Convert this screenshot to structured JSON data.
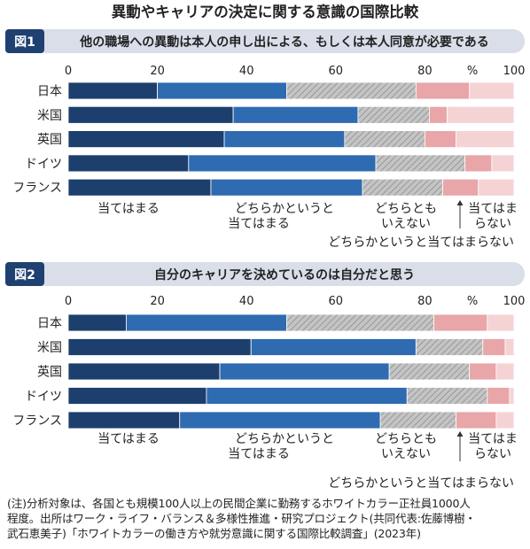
{
  "main_title": "異動やキャリアの決定に関する意識の国際比較",
  "colors": {
    "title_bar_bg": "#d9dee9",
    "figure_tag_bg": "#1f4171",
    "agree": "#1c3f6e",
    "somewhat_agree": "#2e6bb1",
    "neutral": "#b7b7b7",
    "somewhat_disagree": "#e8a6a8",
    "disagree": "#f5d3d5"
  },
  "chart_data": [
    {
      "type": "bar",
      "orientation": "horizontal-stacked",
      "figure_tag": "図1",
      "title": "他の職場への異動は本人の申し出による、もしくは本人同意が必要である",
      "unit_label": "%",
      "xlim": [
        0,
        100
      ],
      "x_ticks": [
        "0",
        "20",
        "40",
        "60",
        "80",
        "100"
      ],
      "categories": [
        "日本",
        "米国",
        "英国",
        "ドイツ",
        "フランス"
      ],
      "series": [
        {
          "name": "当てはまる",
          "values": [
            20,
            37,
            35,
            27,
            32
          ]
        },
        {
          "name": "どちらかというと当てはまる",
          "values": [
            29,
            28,
            27,
            42,
            34
          ]
        },
        {
          "name": "どちらともいえない",
          "values": [
            29,
            16,
            18,
            20,
            18
          ]
        },
        {
          "name": "どちらかというと当てはまらない",
          "values": [
            12,
            4,
            7,
            6,
            8
          ]
        },
        {
          "name": "当てはまらない",
          "values": [
            10,
            15,
            13,
            5,
            8
          ]
        }
      ],
      "legend": {
        "agree": "当てはまる",
        "somewhat_agree_line1": "どちらかというと",
        "somewhat_agree_line2": "当てはまる",
        "neutral_line1": "どちらとも",
        "neutral_line2": "いえない",
        "disagree_line1": "当てはま",
        "disagree_line2": "らない",
        "somewhat_disagree": "どちらかというと当てはまらない"
      }
    },
    {
      "type": "bar",
      "orientation": "horizontal-stacked",
      "figure_tag": "図2",
      "title": "自分のキャリアを決めているのは自分だと思う",
      "unit_label": "%",
      "xlim": [
        0,
        100
      ],
      "x_ticks": [
        "0",
        "20",
        "40",
        "60",
        "80",
        "100"
      ],
      "categories": [
        "日本",
        "米国",
        "英国",
        "ドイツ",
        "フランス"
      ],
      "series": [
        {
          "name": "当てはまる",
          "values": [
            13,
            41,
            34,
            31,
            25
          ]
        },
        {
          "name": "どちらかというと当てはまる",
          "values": [
            36,
            37,
            38,
            45,
            45
          ]
        },
        {
          "name": "どちらともいえない",
          "values": [
            33,
            15,
            18,
            18,
            17
          ]
        },
        {
          "name": "どちらかというと当てはまらない",
          "values": [
            12,
            5,
            6,
            5,
            9
          ]
        },
        {
          "name": "当てはまらない",
          "values": [
            6,
            2,
            4,
            1,
            4
          ]
        }
      ],
      "legend": {
        "agree": "当てはまる",
        "somewhat_agree_line1": "どちらかというと",
        "somewhat_agree_line2": "当てはまる",
        "neutral_line1": "どちらとも",
        "neutral_line2": "いえない",
        "disagree_line1": "当てはま",
        "disagree_line2": "らない",
        "somewhat_disagree": "どちらかというと当てはまらない"
      }
    }
  ],
  "note": {
    "line1": "(注)分析対象は、各国とも規模100人以上の民間企業に勤務するホワイトカラー正社員1000人",
    "line2": "程度。出所はワーク・ライフ・バランス＆多様性推進・研究プロジェクト(共同代表:佐藤博樹・",
    "line3": "武石恵美子)「ホワイトカラーの働き方や就労意識に関する国際比較調査」(2023年)"
  }
}
